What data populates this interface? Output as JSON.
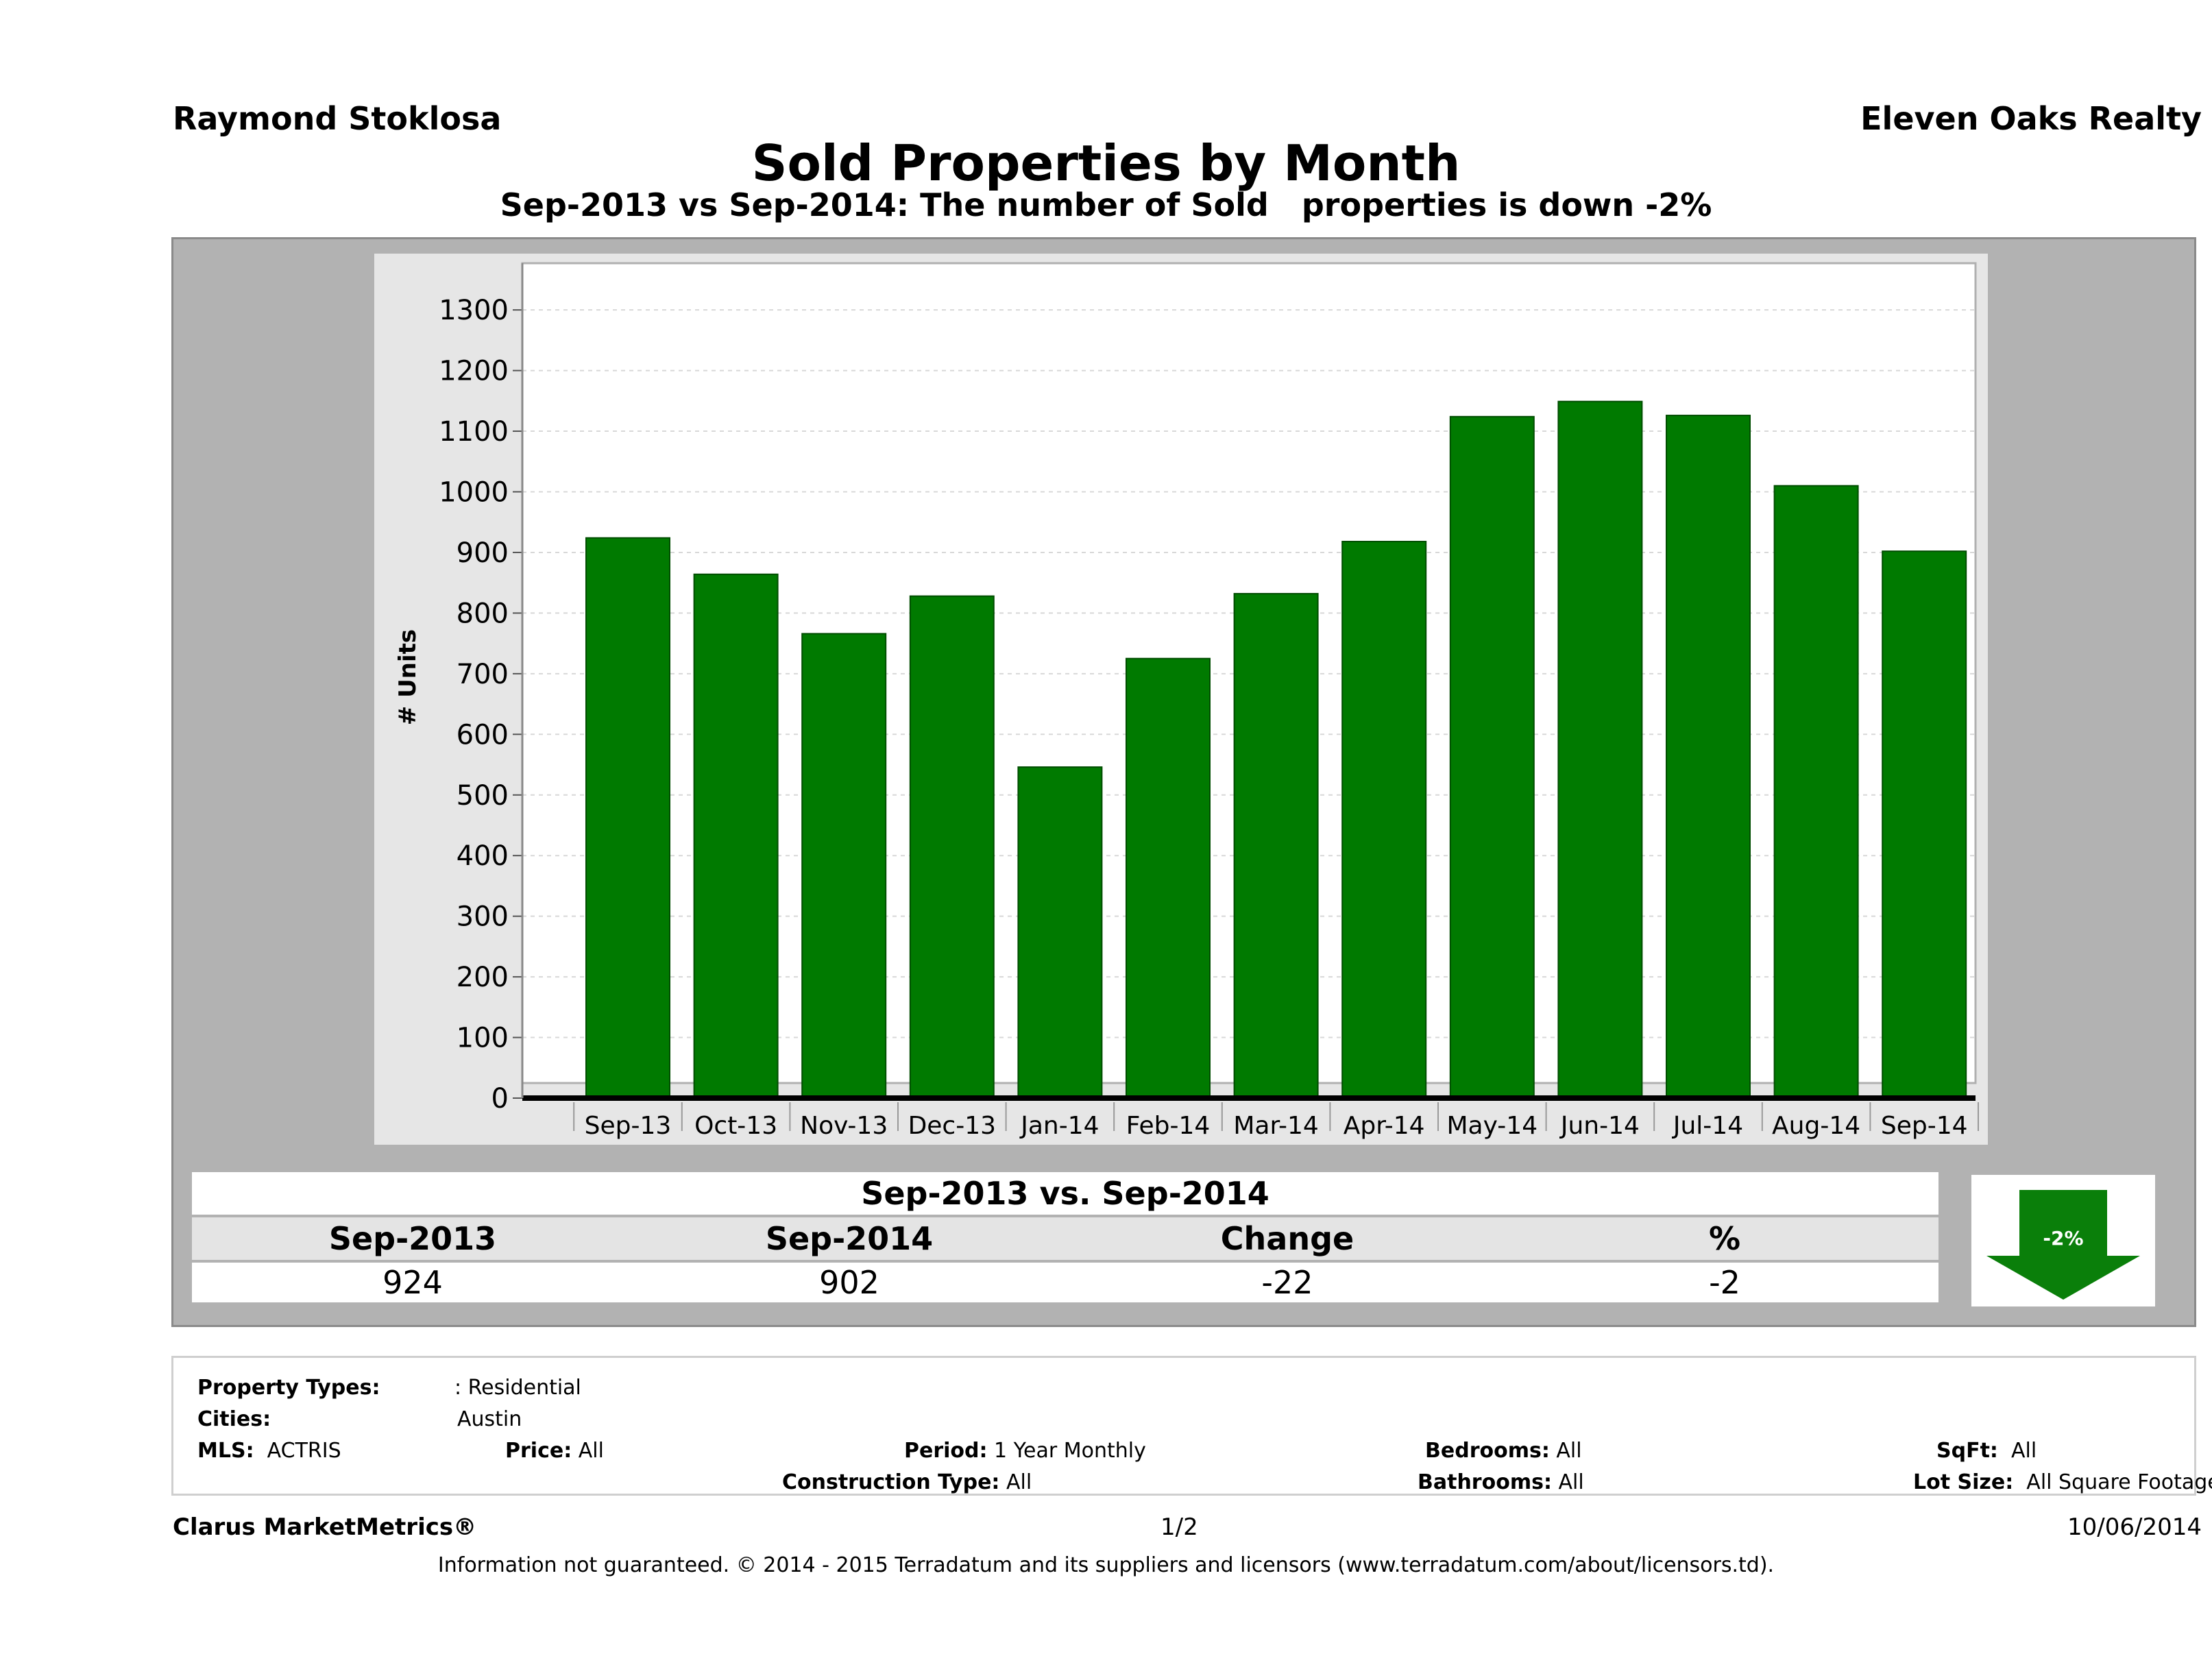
{
  "header": {
    "agent": "Raymond Stoklosa",
    "company": "Eleven Oaks Realty"
  },
  "chart_data": {
    "type": "bar",
    "title": "Sold Properties by Month",
    "subtitle": "Sep-2013 vs Sep-2014: The number of Sold   properties is down -2%",
    "xlabel": "",
    "ylabel": "# Units",
    "categories": [
      "Sep-13",
      "Oct-13",
      "Nov-13",
      "Dec-13",
      "Jan-14",
      "Feb-14",
      "Mar-14",
      "Apr-14",
      "May-14",
      "Jun-14",
      "Jul-14",
      "Aug-14",
      "Sep-14"
    ],
    "values": [
      924,
      864,
      766,
      828,
      546,
      725,
      832,
      918,
      1124,
      1149,
      1126,
      1010,
      902
    ],
    "ylim": [
      0,
      1380
    ],
    "yticks": [
      0,
      100,
      200,
      300,
      400,
      500,
      600,
      700,
      800,
      900,
      1000,
      1100,
      1200,
      1300
    ],
    "bar_color": "#007a00",
    "grid": true
  },
  "summary": {
    "title": "Sep-2013 vs. Sep-2014",
    "headers": [
      "Sep-2013",
      "Sep-2014",
      "Change",
      "%"
    ],
    "values": [
      "924",
      "902",
      "-22",
      "-2"
    ],
    "badge": "-2%",
    "badge_icon": "down-arrow-icon"
  },
  "filters": {
    "property_types_label": "Property Types:",
    "property_types_value": ": Residential",
    "cities_label": "Cities:",
    "cities_value": "Austin",
    "mls_label": "MLS:",
    "mls_value": "ACTRIS",
    "price_label": "Price:",
    "price_value": "All",
    "period_label": "Period:",
    "period_value": "1 Year Monthly",
    "construction_label": "Construction Type:",
    "construction_value": "All",
    "bedrooms_label": "Bedrooms:",
    "bedrooms_value": "All",
    "bathrooms_label": "Bathrooms:",
    "bathrooms_value": "All",
    "sqft_label": "SqFt:",
    "sqft_value": "All",
    "lot_label": "Lot Size:",
    "lot_value": "All Square Footage"
  },
  "footer": {
    "brand": "Clarus MarketMetrics®",
    "page": "1/2",
    "date": "10/06/2014",
    "disclaimer": "Information not guaranteed. © 2014 - 2015 Terradatum and its suppliers and licensors (www.terradatum.com/about/licensors.td)."
  }
}
